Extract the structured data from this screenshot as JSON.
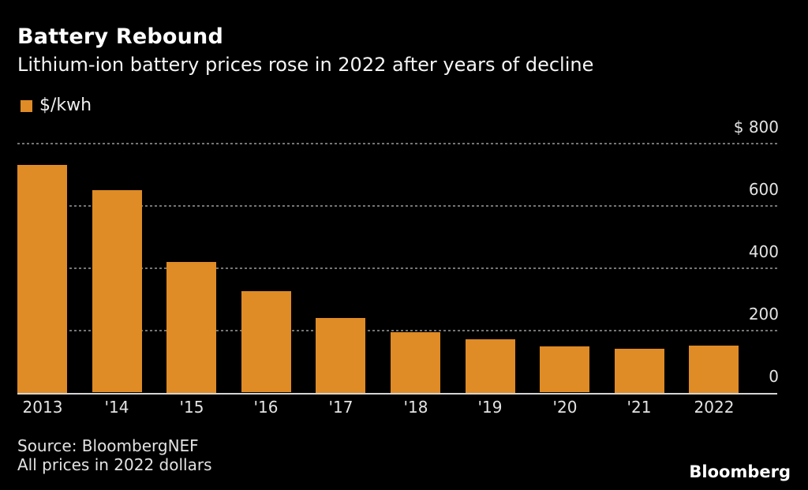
{
  "header": {
    "title": "Battery Rebound",
    "subtitle": "Lithium-ion battery prices rose in 2022 after years of decline"
  },
  "legend": {
    "label": "$/kwh"
  },
  "chart_data": {
    "type": "bar",
    "title": "Battery Rebound",
    "subtitle": "Lithium-ion battery prices rose in 2022 after years of decline",
    "categories": [
      "2013",
      "'14",
      "'15",
      "'16",
      "'17",
      "'18",
      "'19",
      "'20",
      "'21",
      "2022"
    ],
    "values": [
      732,
      650,
      420,
      325,
      240,
      195,
      172,
      148,
      141,
      151
    ],
    "xlabel": "",
    "ylabel": "$/kwh",
    "ylim": [
      0,
      800
    ],
    "y_ticks": [
      {
        "label": "$ 800",
        "value": 800
      },
      {
        "label": "600",
        "value": 600
      },
      {
        "label": "400",
        "value": 400
      },
      {
        "label": "200",
        "value": 200
      },
      {
        "label": "0",
        "value": 0
      }
    ],
    "grid": "horizontal-dotted",
    "legend_position": "top-left",
    "value_axis_side": "right",
    "bar_color": "#DF8B26"
  },
  "colors": {
    "background": "#000000",
    "bar": "#DF8B26",
    "gridline": "#757575",
    "baseline": "#d4d4d4",
    "text": "#ffffff",
    "tick_text": "#e3e3e3"
  },
  "footer": {
    "source": "Source: BloombergNEF",
    "note": "All prices in 2022 dollars",
    "brand": "Bloomberg"
  }
}
